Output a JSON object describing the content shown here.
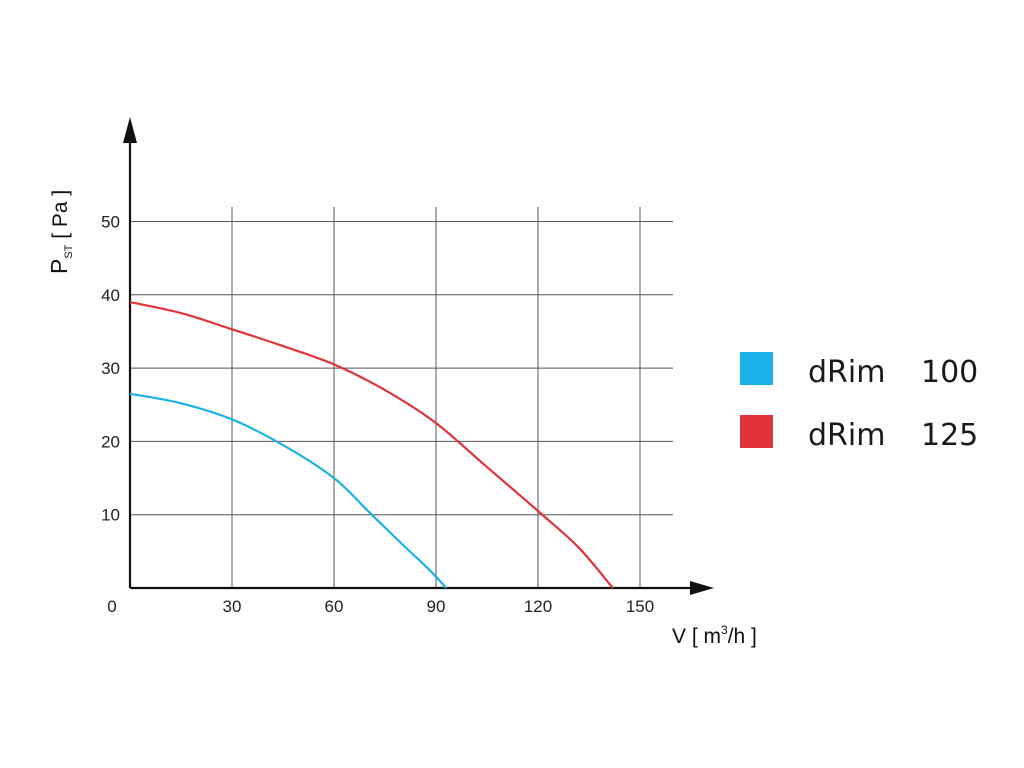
{
  "chart_data": {
    "type": "line",
    "title": "",
    "xlabel": {
      "main": "V [ m",
      "sup": "3",
      "rest": "/h ]"
    },
    "ylabel": {
      "main": "P",
      "sub": "ST",
      "rest": " [ Pa ]"
    },
    "xlim": [
      0,
      160
    ],
    "ylim": [
      0,
      60
    ],
    "x_ticks": [
      30,
      60,
      90,
      120,
      150
    ],
    "y_ticks": [
      10,
      20,
      30,
      40,
      50
    ],
    "x_gridlines": [
      30,
      60,
      90,
      120,
      150
    ],
    "y_gridlines": [
      10,
      20,
      30,
      40,
      50
    ],
    "origin_label": "0",
    "grid": true,
    "legend_position": "right",
    "series": [
      {
        "name": "dRim",
        "size": "100",
        "color": "#1ab0e8",
        "x": [
          0,
          15,
          30,
          45,
          60,
          70,
          80,
          88,
          93
        ],
        "y": [
          26.5,
          25.2,
          23,
          19.5,
          15,
          10.5,
          6,
          2.5,
          0
        ]
      },
      {
        "name": "dRim",
        "size": "125",
        "color": "#e0333c",
        "x": [
          0,
          15,
          30,
          45,
          60,
          75,
          90,
          105,
          120,
          132,
          142
        ],
        "y": [
          39,
          37.5,
          35.3,
          33,
          30.5,
          27,
          22.5,
          16.5,
          10.5,
          5.5,
          0
        ]
      }
    ]
  }
}
